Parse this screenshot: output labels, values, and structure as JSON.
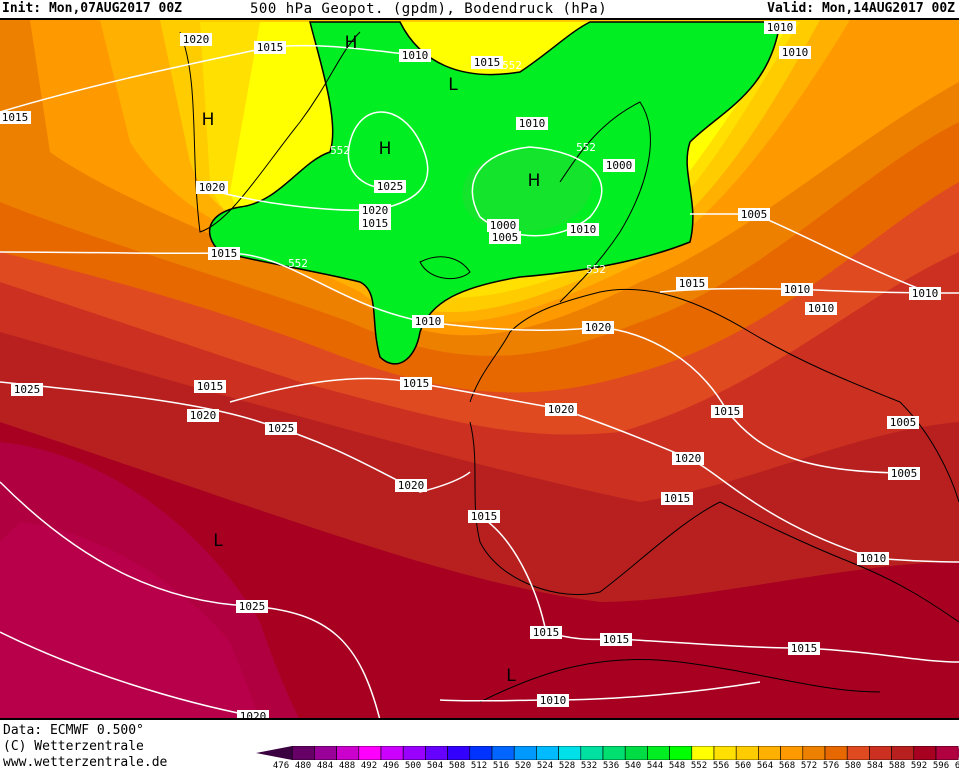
{
  "header": {
    "init": "Init: Mon,07AUG2017 00Z",
    "title": "500 hPa Geopot. (gpdm), Bodendruck (hPa)",
    "valid": "Valid: Mon,14AUG2017 00Z"
  },
  "footer": {
    "data": "Data: ECMWF  0.500°",
    "copyright": "(C) Wetterzentrale",
    "url": "www.wetterzentrale.de"
  },
  "legend": {
    "ticks": [
      "476",
      "480",
      "484",
      "488",
      "492",
      "496",
      "500",
      "504",
      "508",
      "512",
      "516",
      "520",
      "524",
      "528",
      "532",
      "536",
      "540",
      "544",
      "548",
      "552",
      "556",
      "560",
      "564",
      "568",
      "572",
      "576",
      "580",
      "584",
      "588",
      "592",
      "596",
      "600"
    ],
    "colors": [
      "#3a0040",
      "#660066",
      "#990099",
      "#cc00cc",
      "#ff00ff",
      "#cc00ff",
      "#9900ff",
      "#6600ff",
      "#3300ff",
      "#0033ff",
      "#0066ff",
      "#0099ff",
      "#00bbff",
      "#00e0e8",
      "#00e0a0",
      "#00e070",
      "#00dd44",
      "#00ee22",
      "#00ff00",
      "#ffff00",
      "#ffe000",
      "#ffcc00",
      "#ffb000",
      "#ff9900",
      "#ee8000",
      "#e86800",
      "#e04a20",
      "#cc3020",
      "#b82020",
      "#a80020",
      "#b00040",
      "#cc0066"
    ]
  },
  "map": {
    "isobar_labels": [
      "1020",
      "1015",
      "1010",
      "1015",
      "552",
      "1010",
      "1010",
      "1015",
      "1010",
      "552",
      "1000",
      "552",
      "1020",
      "1025",
      "1020",
      "1015",
      "1000",
      "1005",
      "1010",
      "1005",
      "1015",
      "552",
      "552",
      "1015",
      "1010",
      "1010",
      "1010",
      "1010",
      "1020",
      "1025",
      "1015",
      "1015",
      "1020",
      "1020",
      "1015",
      "1025",
      "1005",
      "1020",
      "1005",
      "1020",
      "1015",
      "1015",
      "1010",
      "1025",
      "1015",
      "1015",
      "1015",
      "1010",
      "1020"
    ],
    "pressure_centers": [
      "H",
      "H",
      "H",
      "L",
      "H",
      "L",
      "L"
    ]
  }
}
